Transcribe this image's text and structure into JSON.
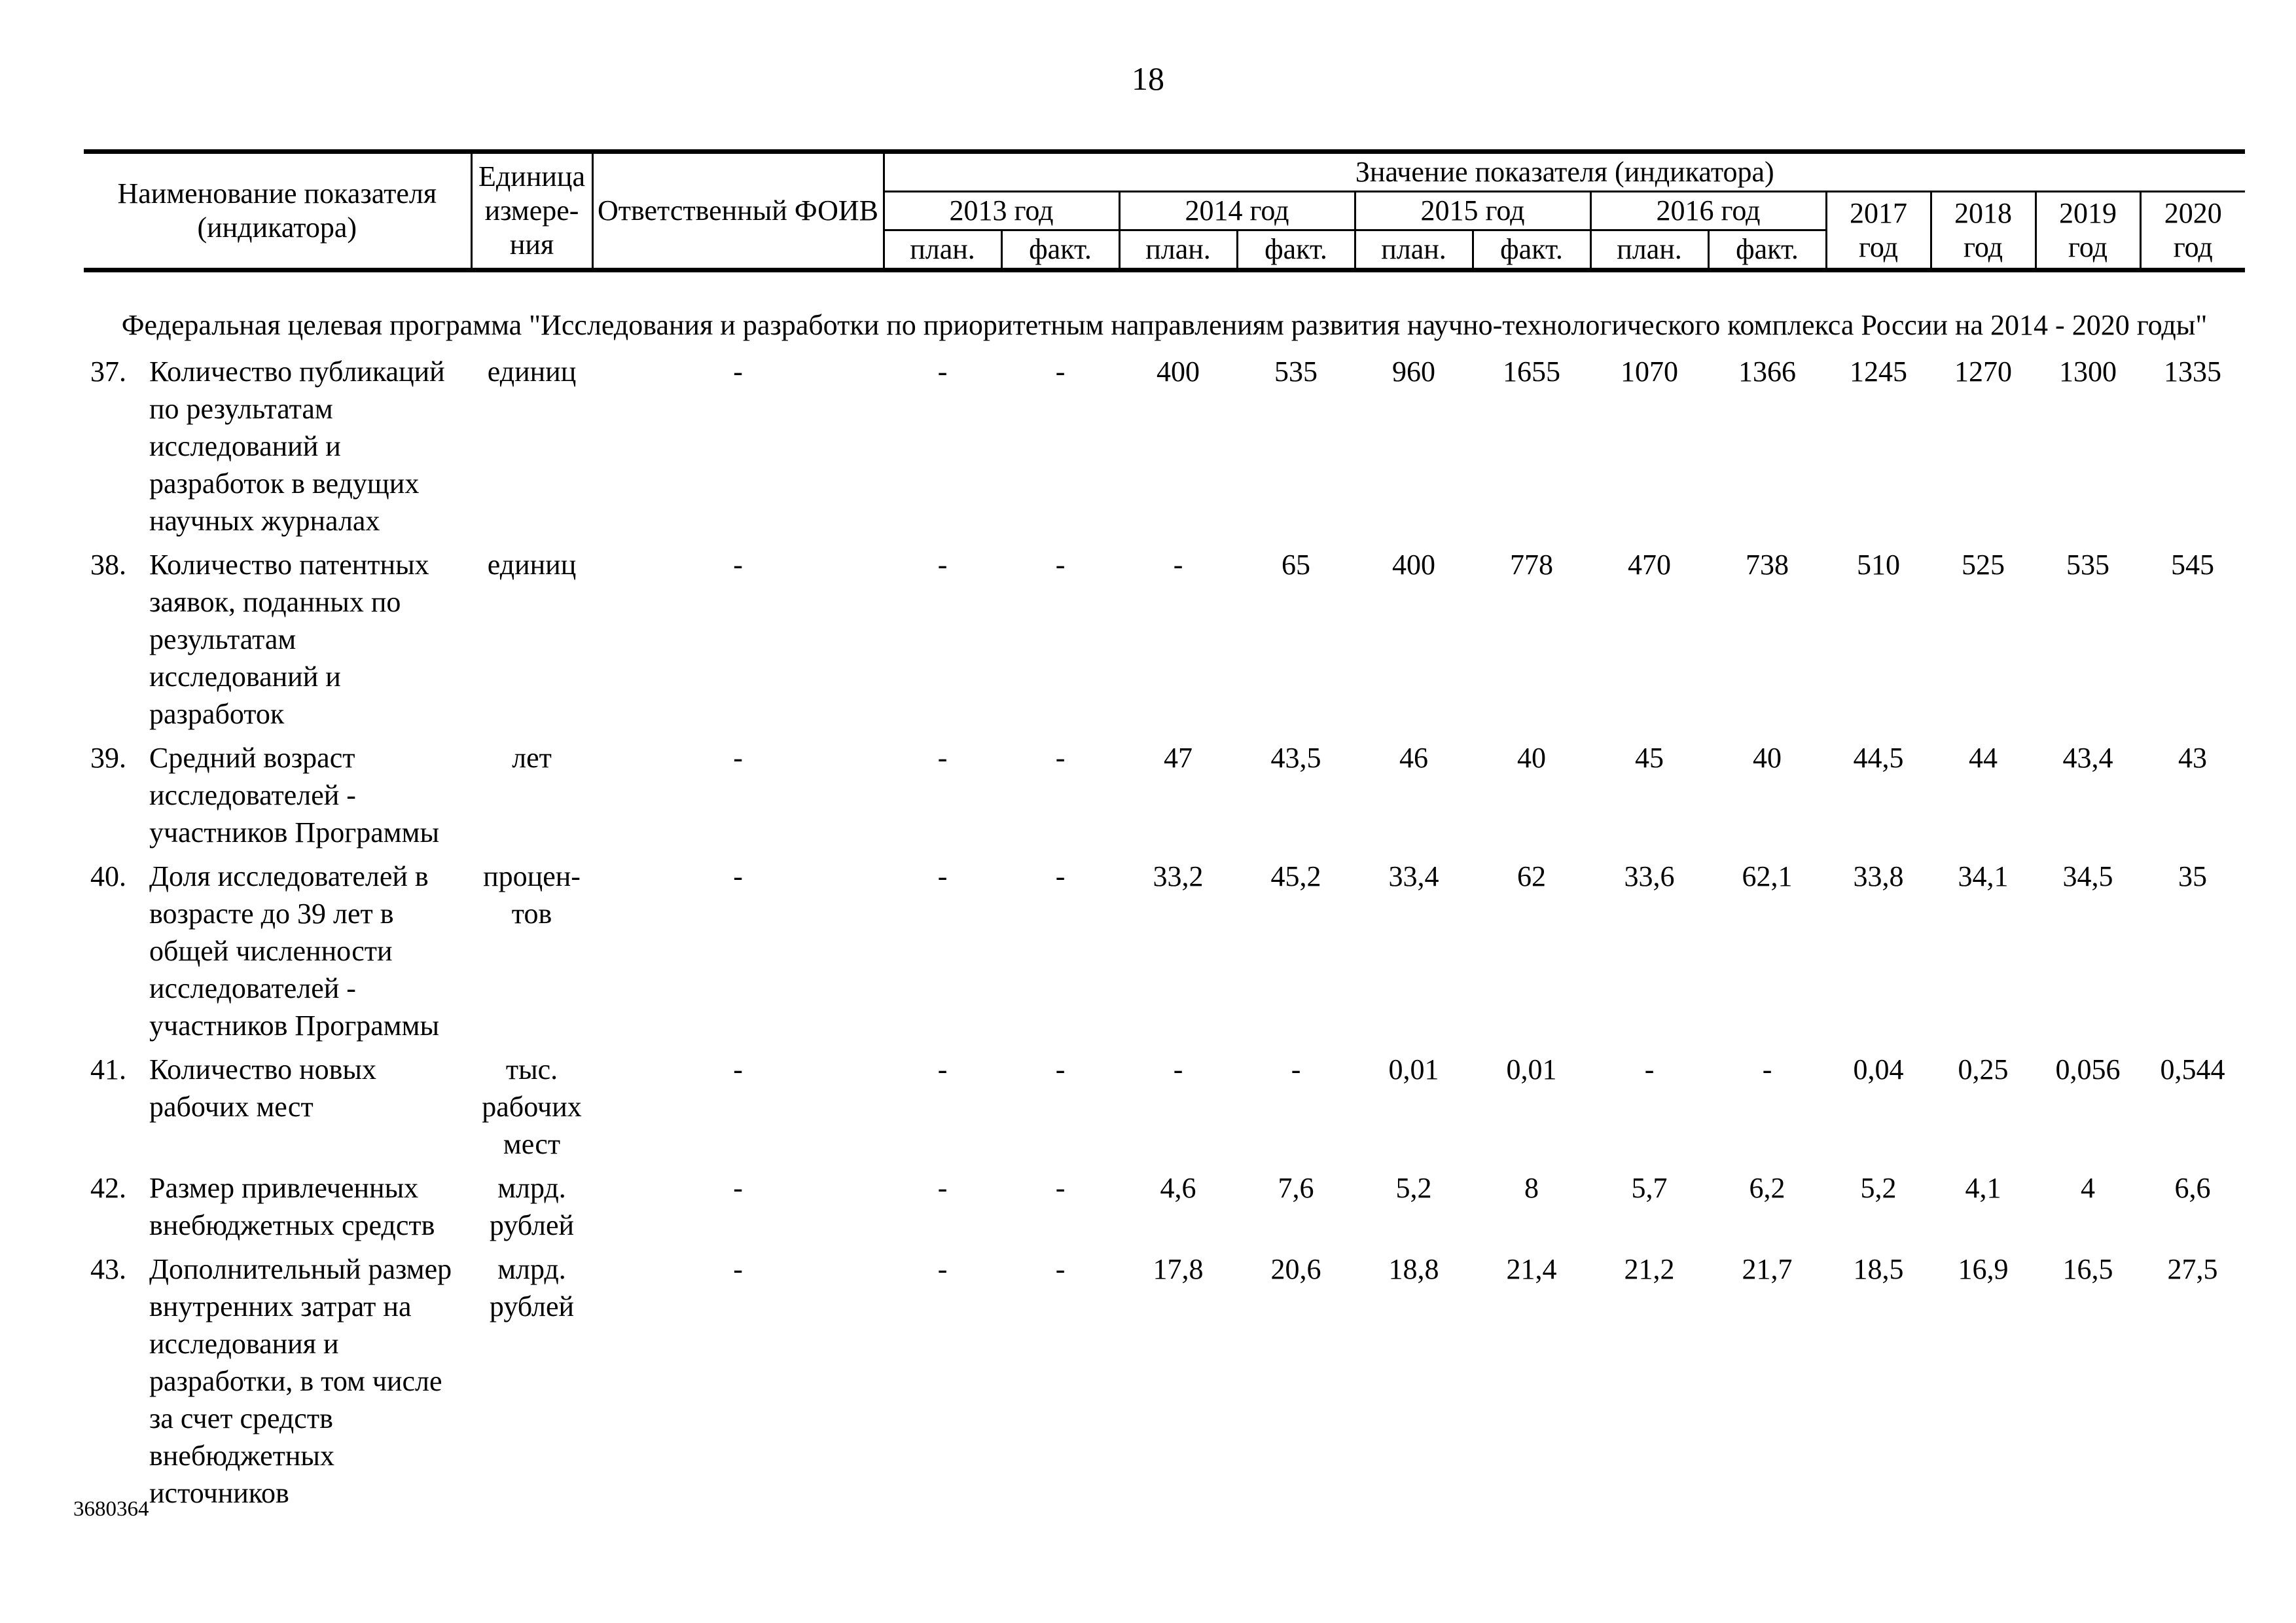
{
  "page_number": "18",
  "footer_code": "3680364",
  "table": {
    "header": {
      "name_col": "Наименование показателя\n(индикатора)",
      "unit_col": "Единица\nизмере-\nния",
      "foiv_col": "Ответственный ФОИВ",
      "values_group": "Значение показателя (индикатора)",
      "year_groups": [
        {
          "label": "2013 год"
        },
        {
          "label": "2014 год"
        },
        {
          "label": "2015 год"
        },
        {
          "label": "2016 год"
        }
      ],
      "plan_label": "план.",
      "fact_label": "факт.",
      "single_year_cols": [
        "2017\nгод",
        "2018\nгод",
        "2019\nгод",
        "2020\nгод"
      ]
    },
    "section_title": "Федеральная целевая программа \"Исследования и разработки по приоритетным направлениям развития научно-технологического комплекса России на 2014 - 2020 годы\"",
    "rows": [
      {
        "num": "37.",
        "name": "Количество публикаций\nпо результатам\nисследований и\nразработок в ведущих\nнаучных журналах",
        "unit": "единиц",
        "foiv": "-",
        "values": [
          "-",
          "-",
          "400",
          "535",
          "960",
          "1655",
          "1070",
          "1366",
          "1245",
          "1270",
          "1300",
          "1335"
        ]
      },
      {
        "num": "38.",
        "name": "Количество патентных\nзаявок, поданных по\nрезультатам\nисследований и\nразработок",
        "unit": "единиц",
        "foiv": "-",
        "values": [
          "-",
          "-",
          "-",
          "65",
          "400",
          "778",
          "470",
          "738",
          "510",
          "525",
          "535",
          "545"
        ]
      },
      {
        "num": "39.",
        "name": "Средний возраст\nисследователей -\nучастников Программы",
        "unit": "лет",
        "foiv": "-",
        "values": [
          "-",
          "-",
          "47",
          "43,5",
          "46",
          "40",
          "45",
          "40",
          "44,5",
          "44",
          "43,4",
          "43"
        ]
      },
      {
        "num": "40.",
        "name": "Доля исследователей в\nвозрасте до 39 лет в\nобщей численности\nисследователей -\nучастников Программы",
        "unit": "процен-\nтов",
        "foiv": "-",
        "values": [
          "-",
          "-",
          "33,2",
          "45,2",
          "33,4",
          "62",
          "33,6",
          "62,1",
          "33,8",
          "34,1",
          "34,5",
          "35"
        ]
      },
      {
        "num": "41.",
        "name": "Количество новых\nрабочих мест",
        "unit": "тыс.\nрабочих\nмест",
        "foiv": "-",
        "values": [
          "-",
          "-",
          "-",
          "-",
          "0,01",
          "0,01",
          "-",
          "-",
          "0,04",
          "0,25",
          "0,056",
          "0,544"
        ]
      },
      {
        "num": "42.",
        "name": "Размер привлеченных\nвнебюджетных средств",
        "unit": "млрд.\nрублей",
        "foiv": "-",
        "values": [
          "-",
          "-",
          "4,6",
          "7,6",
          "5,2",
          "8",
          "5,7",
          "6,2",
          "5,2",
          "4,1",
          "4",
          "6,6"
        ]
      },
      {
        "num": "43.",
        "name": "Дополнительный размер\nвнутренних затрат на\nисследования и\nразработки, в том числе\nза счет средств\nвнебюджетных\nисточников",
        "unit": "млрд.\nрублей",
        "foiv": "-",
        "values": [
          "-",
          "-",
          "17,8",
          "20,6",
          "18,8",
          "21,4",
          "21,2",
          "21,7",
          "18,5",
          "16,9",
          "16,5",
          "27,5"
        ]
      }
    ]
  }
}
